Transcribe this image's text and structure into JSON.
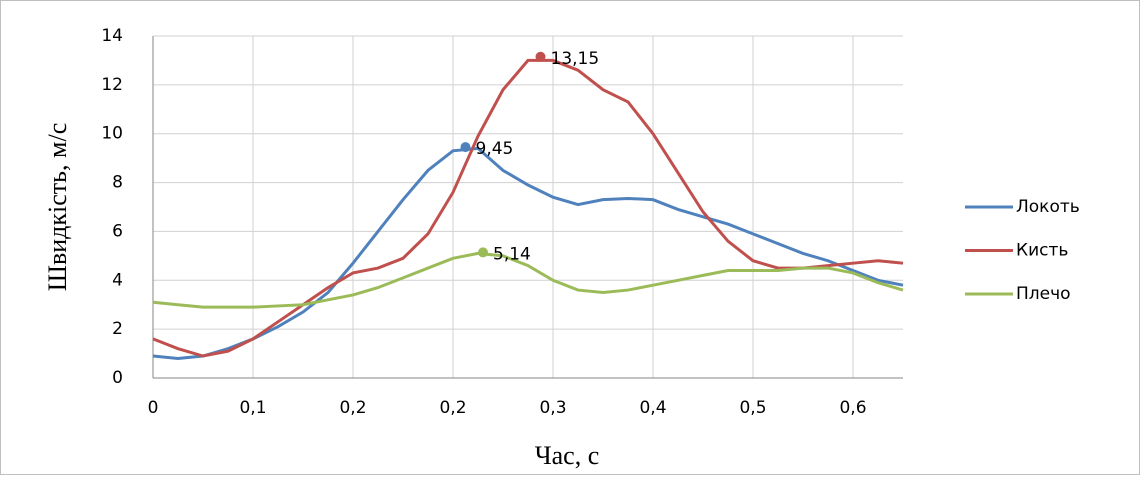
{
  "chart_data": {
    "type": "line",
    "x_label": "Час, с",
    "y_label": "Швидкість, м/с",
    "x": [
      0,
      0.02,
      0.04,
      0.06,
      0.08,
      0.1,
      0.12,
      0.14,
      0.16,
      0.18,
      0.2,
      0.22,
      0.24,
      0.26,
      0.28,
      0.3,
      0.32,
      0.34,
      0.36,
      0.38,
      0.4,
      0.42,
      0.44,
      0.46,
      0.48,
      0.5,
      0.52,
      0.54,
      0.56,
      0.58,
      0.6
    ],
    "series": [
      {
        "name": "Локоть",
        "color": "#4f81bd",
        "values": [
          0.9,
          0.8,
          0.9,
          1.2,
          1.6,
          2.1,
          2.7,
          3.5,
          4.7,
          6.0,
          7.3,
          8.5,
          9.3,
          9.4,
          8.5,
          7.9,
          7.4,
          7.1,
          7.3,
          7.35,
          7.3,
          6.9,
          6.6,
          6.3,
          5.9,
          5.5,
          5.1,
          4.8,
          4.4,
          4.0,
          3.8
        ]
      },
      {
        "name": "Кисть",
        "color": "#c0504d",
        "values": [
          1.6,
          1.2,
          0.9,
          1.1,
          1.6,
          2.3,
          3.0,
          3.7,
          4.3,
          4.5,
          4.9,
          5.9,
          7.6,
          9.9,
          11.8,
          13.0,
          13.0,
          12.6,
          11.8,
          11.3,
          10.0,
          8.4,
          6.8,
          5.6,
          4.8,
          4.5,
          4.5,
          4.6,
          4.7,
          4.8,
          4.7
        ]
      },
      {
        "name": "Плечо",
        "color": "#9bbb59",
        "values": [
          3.1,
          3.0,
          2.9,
          2.9,
          2.9,
          2.95,
          3.0,
          3.2,
          3.4,
          3.7,
          4.1,
          4.5,
          4.9,
          5.1,
          5.0,
          4.6,
          4.0,
          3.6,
          3.5,
          3.6,
          3.8,
          4.0,
          4.2,
          4.4,
          4.4,
          4.4,
          4.5,
          4.5,
          4.3,
          3.9,
          3.6
        ]
      }
    ],
    "annotations": [
      {
        "text": "13,15",
        "x": 0.31,
        "y": 13.15,
        "series": 1
      },
      {
        "text": "9,45",
        "x": 0.25,
        "y": 9.45,
        "series": 0
      },
      {
        "text": "5,14",
        "x": 0.264,
        "y": 5.14,
        "series": 2
      }
    ],
    "xlim": [
      0,
      0.6
    ],
    "ylim": [
      0,
      14
    ],
    "xticks": [
      0,
      {
        "value": 0.08,
        "label": "0,1"
      },
      {
        "value": 0.16,
        "label": "0,2"
      },
      {
        "value": 0.24,
        "label": "0,2"
      },
      {
        "value": 0.32,
        "label": "0,3"
      },
      {
        "value": 0.4,
        "label": "0,4"
      },
      {
        "value": 0.48,
        "label": "0,5"
      },
      {
        "value": 0.56,
        "label": "0,6"
      }
    ],
    "yticks": [
      0,
      2,
      4,
      6,
      8,
      10,
      12,
      14
    ],
    "grid": true,
    "legend": "right"
  }
}
